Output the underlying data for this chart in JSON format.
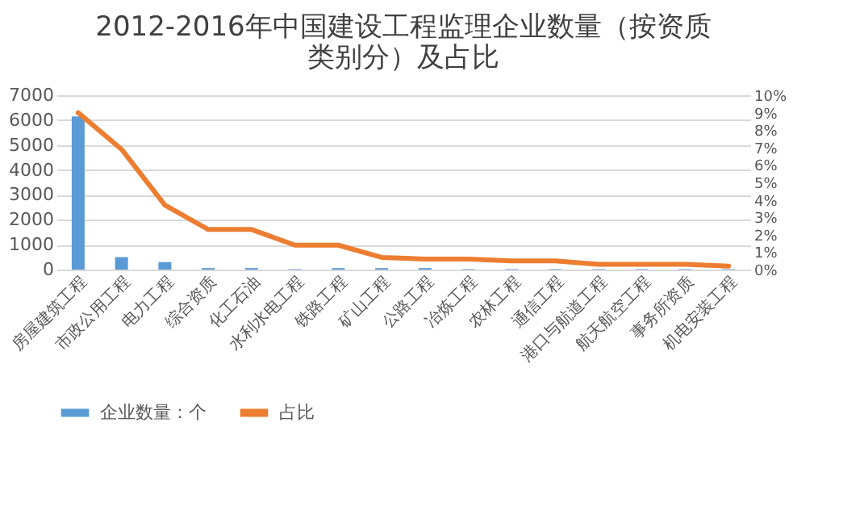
{
  "chart_data": {
    "type": "bar",
    "title": "2012-2016年中国建设工程监理企业数量（按资质类别分）及占比",
    "categories": [
      "房屋建筑工程",
      "市政公用工程",
      "电力工程",
      "综合资质",
      "化工石油",
      "水利水电工程",
      "铁路工程",
      "矿山工程",
      "公路工程",
      "冶炼工程",
      "农林工程",
      "通信工程",
      "港口与航道工程",
      "航天航空工程",
      "事务所资质",
      "机电安装工程"
    ],
    "series": [
      {
        "name": "企业数量：个",
        "color": "#5b9bd5",
        "values": [
          6150,
          500,
          300,
          60,
          60,
          20,
          60,
          60,
          60,
          20,
          20,
          20,
          20,
          20,
          20,
          20
        ]
      },
      {
        "name": "占比",
        "type": "line",
        "axis": "y2",
        "color": "#ed7d31",
        "values": [
          9.0,
          6.9,
          3.7,
          2.3,
          2.3,
          1.4,
          1.4,
          0.7,
          0.6,
          0.6,
          0.5,
          0.5,
          0.3,
          0.3,
          0.3,
          0.2
        ]
      }
    ],
    "ylim": [
      0,
      7000
    ],
    "yticks": [
      0,
      1000,
      2000,
      3000,
      4000,
      5000,
      6000,
      7000
    ],
    "y2lim": [
      0,
      10
    ],
    "y2ticks": [
      {
        "value": 0,
        "label": "0%"
      },
      {
        "value": 1,
        "label": "1%"
      },
      {
        "value": 2,
        "label": "2%"
      },
      {
        "value": 3,
        "label": "3%"
      },
      {
        "value": 4,
        "label": "4%"
      },
      {
        "value": 5,
        "label": "5%"
      },
      {
        "value": 6,
        "label": "6%"
      },
      {
        "value": 7,
        "label": "7%"
      },
      {
        "value": 8,
        "label": "8%"
      },
      {
        "value": 9,
        "label": "9%"
      },
      {
        "value": 10,
        "label": "10%"
      }
    ],
    "grid": "y",
    "legend": "bottom"
  }
}
